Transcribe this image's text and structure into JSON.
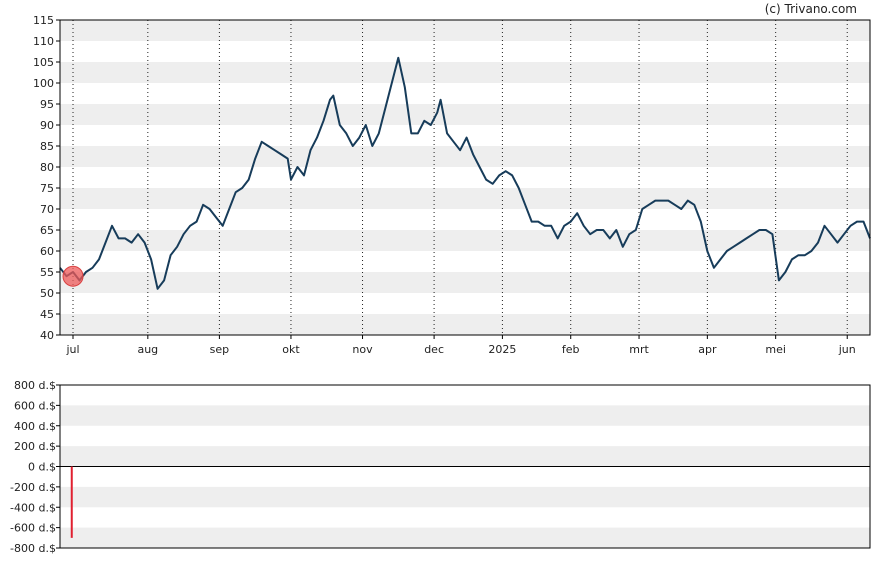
{
  "credit": "(c) Trivano.com",
  "chart_data": [
    {
      "type": "line",
      "panel": "price",
      "ylim": [
        40,
        115
      ],
      "yticks": [
        40,
        45,
        50,
        55,
        60,
        65,
        70,
        75,
        80,
        85,
        90,
        95,
        100,
        105,
        110,
        115
      ],
      "ytick_labels": [
        "40",
        "45",
        "50",
        "55",
        "60",
        "65",
        "70",
        "75",
        "80",
        "85",
        "90",
        "95",
        "100",
        "105",
        "110",
        "115"
      ],
      "xlabels": [
        "jul",
        "aug",
        "sep",
        "okt",
        "nov",
        "dec",
        "2025",
        "feb",
        "mrt",
        "apr",
        "mei",
        "jun"
      ],
      "x_count": 250,
      "xlabel_index": [
        4,
        27,
        49,
        71,
        93,
        115,
        136,
        157,
        178,
        199,
        220,
        242
      ],
      "grid": "horizontal bands, dotted vertical lines at month starts",
      "series": [
        {
          "color": "#173c5a",
          "points": [
            [
              0,
              56
            ],
            [
              2,
              54
            ],
            [
              4,
              55
            ],
            [
              6,
              53
            ],
            [
              8,
              55
            ],
            [
              10,
              56
            ],
            [
              12,
              58
            ],
            [
              14,
              62
            ],
            [
              16,
              66
            ],
            [
              18,
              63
            ],
            [
              20,
              63
            ],
            [
              22,
              62
            ],
            [
              24,
              64
            ],
            [
              26,
              62
            ],
            [
              28,
              58
            ],
            [
              30,
              51
            ],
            [
              32,
              53
            ],
            [
              34,
              59
            ],
            [
              36,
              61
            ],
            [
              38,
              64
            ],
            [
              40,
              66
            ],
            [
              42,
              67
            ],
            [
              44,
              71
            ],
            [
              46,
              70
            ],
            [
              48,
              68
            ],
            [
              50,
              66
            ],
            [
              52,
              70
            ],
            [
              54,
              74
            ],
            [
              56,
              75
            ],
            [
              58,
              77
            ],
            [
              60,
              82
            ],
            [
              62,
              86
            ],
            [
              64,
              85
            ],
            [
              66,
              84
            ],
            [
              68,
              83
            ],
            [
              70,
              82
            ],
            [
              71,
              77
            ],
            [
              73,
              80
            ],
            [
              75,
              78
            ],
            [
              77,
              84
            ],
            [
              79,
              87
            ],
            [
              81,
              91
            ],
            [
              83,
              96
            ],
            [
              84,
              97
            ],
            [
              86,
              90
            ],
            [
              88,
              88
            ],
            [
              90,
              85
            ],
            [
              92,
              87
            ],
            [
              94,
              90
            ],
            [
              96,
              85
            ],
            [
              98,
              88
            ],
            [
              100,
              94
            ],
            [
              102,
              100
            ],
            [
              104,
              106
            ],
            [
              106,
              99
            ],
            [
              108,
              88
            ],
            [
              110,
              88
            ],
            [
              112,
              91
            ],
            [
              114,
              90
            ],
            [
              116,
              93
            ],
            [
              117,
              96
            ],
            [
              119,
              88
            ],
            [
              121,
              86
            ],
            [
              123,
              84
            ],
            [
              125,
              87
            ],
            [
              127,
              83
            ],
            [
              129,
              80
            ],
            [
              131,
              77
            ],
            [
              133,
              76
            ],
            [
              135,
              78
            ],
            [
              137,
              79
            ],
            [
              139,
              78
            ],
            [
              141,
              75
            ],
            [
              143,
              71
            ],
            [
              145,
              67
            ],
            [
              147,
              67
            ],
            [
              149,
              66
            ],
            [
              151,
              66
            ],
            [
              153,
              63
            ],
            [
              155,
              66
            ],
            [
              157,
              67
            ],
            [
              159,
              69
            ],
            [
              161,
              66
            ],
            [
              163,
              64
            ],
            [
              165,
              65
            ],
            [
              167,
              65
            ],
            [
              169,
              63
            ],
            [
              171,
              65
            ],
            [
              173,
              61
            ],
            [
              175,
              64
            ],
            [
              177,
              65
            ],
            [
              179,
              70
            ],
            [
              181,
              71
            ],
            [
              183,
              72
            ],
            [
              185,
              72
            ],
            [
              187,
              72
            ],
            [
              189,
              71
            ],
            [
              191,
              70
            ],
            [
              193,
              72
            ],
            [
              195,
              71
            ],
            [
              197,
              67
            ],
            [
              199,
              60
            ],
            [
              201,
              56
            ],
            [
              203,
              58
            ],
            [
              205,
              60
            ],
            [
              207,
              61
            ],
            [
              209,
              62
            ],
            [
              211,
              63
            ],
            [
              213,
              64
            ],
            [
              215,
              65
            ],
            [
              217,
              65
            ],
            [
              219,
              64
            ],
            [
              221,
              53
            ],
            [
              223,
              55
            ],
            [
              225,
              58
            ],
            [
              227,
              59
            ],
            [
              229,
              59
            ],
            [
              231,
              60
            ],
            [
              233,
              62
            ],
            [
              235,
              66
            ],
            [
              237,
              64
            ],
            [
              239,
              62
            ],
            [
              241,
              64
            ],
            [
              243,
              66
            ],
            [
              245,
              67
            ],
            [
              247,
              67
            ],
            [
              249,
              63
            ]
          ]
        }
      ],
      "marker": {
        "index": 4,
        "value": 54,
        "color": "#ee5a5a"
      }
    },
    {
      "type": "bar",
      "panel": "volume",
      "ylim": [
        -800,
        800
      ],
      "yticks": [
        800,
        600,
        400,
        200,
        0,
        -200,
        -400,
        -600,
        -800
      ],
      "ytick_labels": [
        "800 d.$",
        "600 d.$",
        "400 d.$",
        "200 d.$",
        "0 d.$",
        "-200 d.$",
        "-400 d.$",
        "-600 d.$",
        "-800 d.$"
      ],
      "bars": [
        {
          "index": 3,
          "value": -700,
          "color": "#e02030"
        }
      ]
    }
  ]
}
